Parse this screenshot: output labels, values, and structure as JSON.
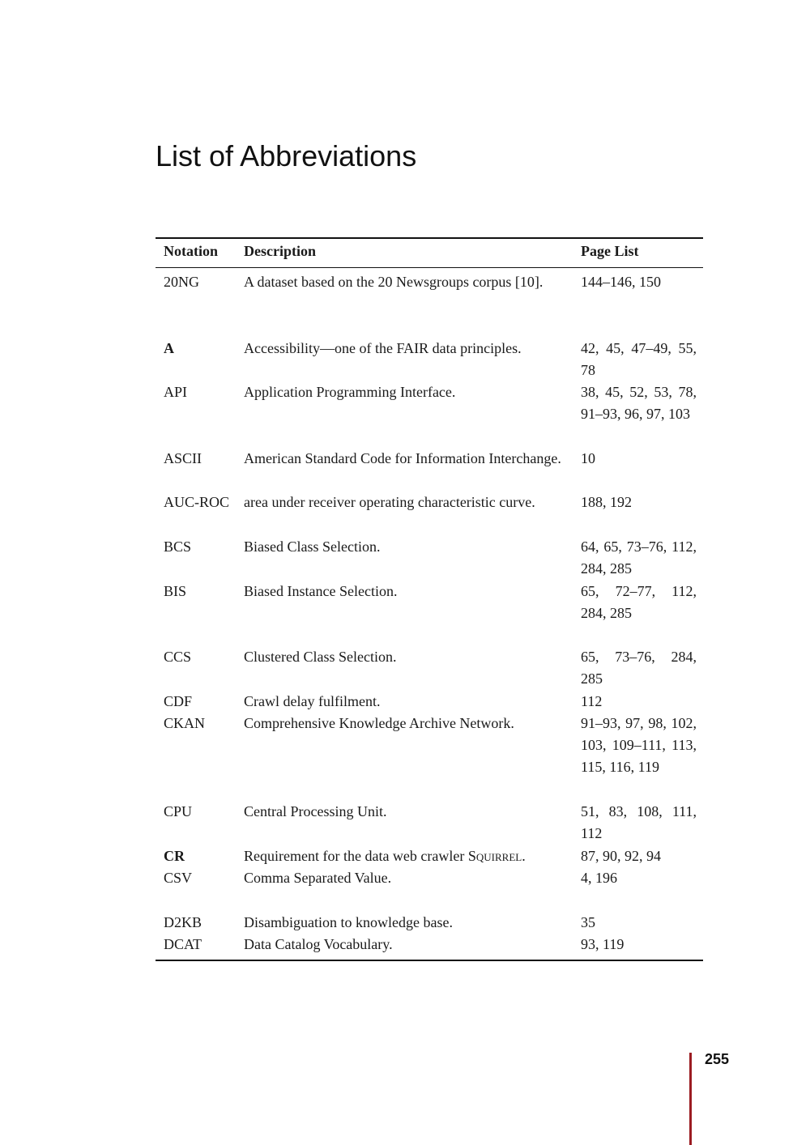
{
  "title": "List of Abbreviations",
  "columns": {
    "notation": "Notation",
    "description": "Description",
    "pages": "Page List"
  },
  "rows": [
    {
      "notation": "20NG",
      "description": "A dataset based on the 20 Newsgroups corpus [10].",
      "pages": "144–146, 150"
    },
    {
      "notation": "A",
      "description": "Accessibility—one of the FAIR data principles.",
      "pages": "42, 45, 47–49, 55, 78"
    },
    {
      "notation": "API",
      "description": "Application Programming Interface.",
      "pages": "38, 45, 52, 53, 78, 91–93, 96, 97, 103"
    },
    {
      "notation": "ASCII",
      "description": "American Standard Code for Information Interchange.",
      "pages": "10"
    },
    {
      "notation": "AUC-ROC",
      "description": "area under receiver operating characteristic curve.",
      "pages": "188, 192"
    },
    {
      "notation": "BCS",
      "description": "Biased Class Selection.",
      "pages": "64, 65, 73–76, 112, 284, 285"
    },
    {
      "notation": "BIS",
      "description": "Biased Instance Selection.",
      "pages": "65, 72–77, 112, 284, 285"
    },
    {
      "notation": "CCS",
      "description": "Clustered Class Selection.",
      "pages": "65, 73–76, 284, 285"
    },
    {
      "notation": "CDF",
      "description": "Crawl delay fulfilment.",
      "pages": "112"
    },
    {
      "notation": "CKAN",
      "description": "Comprehensive Knowledge Archive Network.",
      "pages": "91–93, 97, 98, 102, 103, 109–111, 113, 115, 116, 119"
    },
    {
      "notation": "CPU",
      "description": "Central Processing Unit.",
      "pages": "51, 83, 108, 111, 112"
    },
    {
      "notation": "CR",
      "description": "Requirement for the data web crawler Squirrel.",
      "pages": "87, 90, 92, 94"
    },
    {
      "notation": "CSV",
      "description": "Comma Separated Value.",
      "pages": "4, 196"
    },
    {
      "notation": "D2KB",
      "description": "Disambiguation to knowledge base.",
      "pages": "35"
    },
    {
      "notation": "DCAT",
      "description": "Data Catalog Vocabulary.",
      "pages": "93, 119"
    }
  ],
  "page_number": "255",
  "colors": {
    "page_bar": "#9b1c22"
  }
}
